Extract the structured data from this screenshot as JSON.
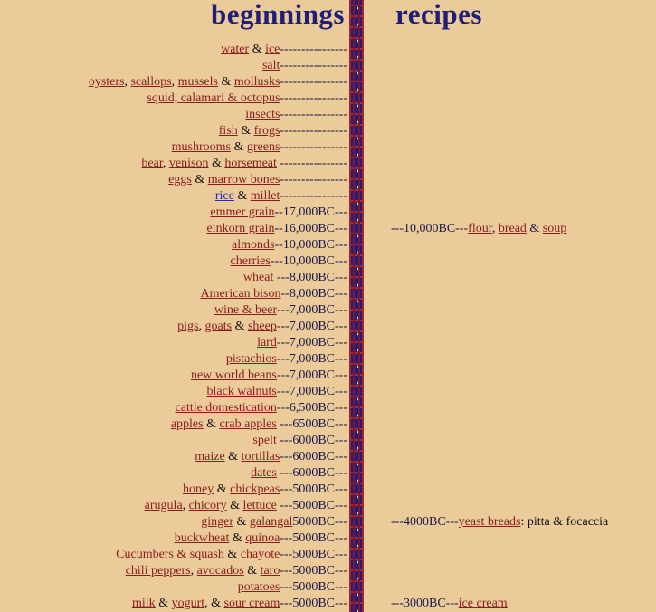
{
  "titles": {
    "left": "beginnings",
    "right": "recipes"
  },
  "rows": [
    {
      "parts": [
        [
          "link",
          "water"
        ],
        [
          "t",
          " & "
        ],
        [
          "link",
          "ice"
        ]
      ],
      "suffix": "----------------"
    },
    {
      "parts": [
        [
          "link",
          "salt"
        ]
      ],
      "suffix": "----------------"
    },
    {
      "parts": [
        [
          "link",
          "oysters"
        ],
        [
          "t",
          ", "
        ],
        [
          "link",
          "scallops"
        ],
        [
          "t",
          ", "
        ],
        [
          "link",
          "mussels"
        ],
        [
          "t",
          " & "
        ],
        [
          "link",
          "mollusks"
        ]
      ],
      "suffix": "----------------"
    },
    {
      "parts": [
        [
          "link",
          "squid, calamari & octopus"
        ]
      ],
      "suffix": "----------------"
    },
    {
      "parts": [
        [
          "link",
          "insects"
        ]
      ],
      "suffix": "----------------"
    },
    {
      "parts": [
        [
          "link",
          "fish"
        ],
        [
          "t",
          " & "
        ],
        [
          "link",
          "frogs"
        ]
      ],
      "suffix": "----------------"
    },
    {
      "parts": [
        [
          "link",
          "mushrooms"
        ],
        [
          "t",
          " & "
        ],
        [
          "link",
          "greens"
        ]
      ],
      "suffix": "----------------"
    },
    {
      "parts": [
        [
          "link",
          "bear"
        ],
        [
          "t",
          ", "
        ],
        [
          "link",
          "venison"
        ],
        [
          "t",
          " & "
        ],
        [
          "link",
          "horsemeat"
        ]
      ],
      "suffix": " ----------------"
    },
    {
      "parts": [
        [
          "link",
          "eggs"
        ],
        [
          "t",
          " & "
        ],
        [
          "link",
          "marrow bones"
        ]
      ],
      "suffix": "----------------"
    },
    {
      "parts": [
        [
          "blue",
          "rice"
        ],
        [
          "t",
          " & "
        ],
        [
          "link",
          "millet"
        ]
      ],
      "suffix": "----------------"
    },
    {
      "parts": [
        [
          "link",
          "emmer grain"
        ]
      ],
      "suffix": "--17,000BC---"
    },
    {
      "parts": [
        [
          "link",
          "einkorn grain"
        ]
      ],
      "suffix": "--16,000BC---"
    },
    {
      "parts": [
        [
          "link",
          "almonds"
        ]
      ],
      "suffix": "--10,000BC---"
    },
    {
      "parts": [
        [
          "link",
          "cherries"
        ]
      ],
      "suffix": "---10,000BC---"
    },
    {
      "parts": [
        [
          "link",
          "wheat"
        ]
      ],
      "suffix": " ---8,000BC---"
    },
    {
      "parts": [
        [
          "link",
          "American bison"
        ]
      ],
      "suffix": "--8,000BC---"
    },
    {
      "parts": [
        [
          "link",
          "wine & beer"
        ]
      ],
      "suffix": "---7,000BC---"
    },
    {
      "parts": [
        [
          "link",
          "pigs"
        ],
        [
          "t",
          ", "
        ],
        [
          "link",
          "goats"
        ],
        [
          "t",
          " & "
        ],
        [
          "link",
          "sheep"
        ]
      ],
      "suffix": "---7,000BC---"
    },
    {
      "parts": [
        [
          "link",
          "lard"
        ]
      ],
      "suffix": "---7,000BC---"
    },
    {
      "parts": [
        [
          "link",
          "pistachios"
        ]
      ],
      "suffix": "---7,000BC---"
    },
    {
      "parts": [
        [
          "link",
          "new world beans"
        ]
      ],
      "suffix": "---7,000BC---"
    },
    {
      "parts": [
        [
          "link",
          "black walnuts"
        ]
      ],
      "suffix": "---7,000BC---"
    },
    {
      "parts": [
        [
          "link",
          "cattle domestication"
        ]
      ],
      "suffix": "---6,500BC---"
    },
    {
      "parts": [
        [
          "link",
          "apples"
        ],
        [
          "t",
          " & "
        ],
        [
          "link",
          "crab apples"
        ]
      ],
      "suffix": " ---6500BC---"
    },
    {
      "parts": [
        [
          "link",
          "spelt "
        ]
      ],
      "suffix": "---6000BC---"
    },
    {
      "parts": [
        [
          "link",
          "maize"
        ],
        [
          "t",
          " & "
        ],
        [
          "link",
          "tortillas"
        ]
      ],
      "suffix": "---6000BC---"
    },
    {
      "parts": [
        [
          "link",
          "dates"
        ]
      ],
      "suffix": " ---6000BC---"
    },
    {
      "parts": [
        [
          "link",
          "honey"
        ],
        [
          "t",
          " & "
        ],
        [
          "link",
          "chickpeas"
        ]
      ],
      "suffix": "---5000BC---"
    },
    {
      "parts": [
        [
          "link",
          "arugula"
        ],
        [
          "t",
          ", "
        ],
        [
          "link",
          "chicory"
        ],
        [
          "t",
          " & "
        ],
        [
          "link",
          "lettuce"
        ]
      ],
      "suffix": " ---5000BC---"
    },
    {
      "parts": [
        [
          "link",
          "ginger"
        ],
        [
          "t",
          " & "
        ],
        [
          "link",
          "galangal"
        ]
      ],
      "suffix": "5000BC---"
    },
    {
      "parts": [
        [
          "link",
          "buckwheat"
        ],
        [
          "t",
          " & "
        ],
        [
          "link",
          "quinoa"
        ]
      ],
      "suffix": "---5000BC---"
    },
    {
      "parts": [
        [
          "link",
          "Cucumbers & squash"
        ],
        [
          "t",
          " & "
        ],
        [
          "link",
          "chayote"
        ]
      ],
      "suffix": "---5000BC---"
    },
    {
      "parts": [
        [
          "link",
          "chili peppers"
        ],
        [
          "t",
          ", "
        ],
        [
          "link",
          "avocados"
        ],
        [
          "t",
          " & "
        ],
        [
          "link",
          "taro"
        ]
      ],
      "suffix": "---5000BC---"
    },
    {
      "parts": [
        [
          "link",
          "potatoes"
        ]
      ],
      "suffix": "---5000BC---"
    },
    {
      "parts": [
        [
          "link",
          "milk"
        ],
        [
          "t",
          " & "
        ],
        [
          "link",
          "yogurt"
        ],
        [
          "t",
          ", & "
        ],
        [
          "link",
          "sour cream"
        ]
      ],
      "suffix": "---5000BC---"
    }
  ],
  "recipes": [
    {
      "row": 11,
      "parts": [
        [
          "t",
          "---10,000BC---"
        ],
        [
          "link",
          "flour"
        ],
        [
          "t",
          ", "
        ],
        [
          "link",
          "bread"
        ],
        [
          "t",
          " & "
        ],
        [
          "link",
          "soup"
        ]
      ]
    },
    {
      "row": 29,
      "parts": [
        [
          "t",
          "---4000BC---"
        ],
        [
          "link",
          "yeast breads"
        ],
        [
          "p",
          ": pitta & focaccia"
        ]
      ]
    },
    {
      "row": 34,
      "parts": [
        [
          "t",
          "---3000BC---"
        ],
        [
          "link",
          "ice cream"
        ]
      ]
    }
  ]
}
